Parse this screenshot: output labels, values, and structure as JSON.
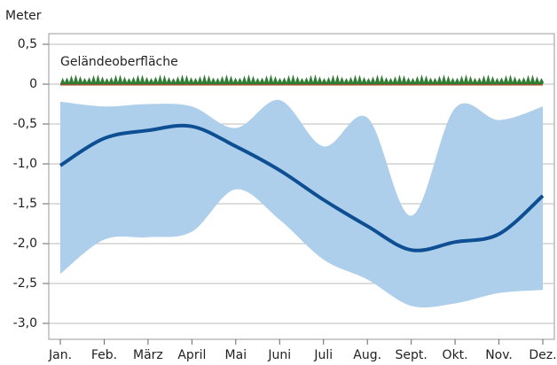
{
  "chart_data": {
    "type": "line",
    "y_label": "Meter",
    "annotation": "Geländeoberfläche",
    "categories": [
      "Jan.",
      "Feb.",
      "März",
      "April",
      "Mai",
      "Juni",
      "Juli",
      "Aug.",
      "Sept.",
      "Okt.",
      "Nov.",
      "Dez."
    ],
    "values": [
      -1.02,
      -0.68,
      -0.58,
      -0.53,
      -0.78,
      -1.08,
      -1.45,
      -1.78,
      -2.08,
      -1.98,
      -1.88,
      -1.4
    ],
    "color": "#0e4f94",
    "band_upper": [
      -0.22,
      -0.28,
      -0.25,
      -0.28,
      -0.55,
      -0.2,
      -0.78,
      -0.42,
      -1.65,
      -0.3,
      -0.45,
      -0.28
    ],
    "band_lower": [
      -2.38,
      -1.95,
      -1.92,
      -1.85,
      -1.32,
      -1.7,
      -2.2,
      -2.45,
      -2.78,
      -2.75,
      -2.62,
      -2.58
    ],
    "band_color": "#aecfeb",
    "ylim": [
      -3.2,
      0.6
    ],
    "yticks": [
      {
        "value": 0.5,
        "label": "0,5"
      },
      0,
      {
        "value": -0.5,
        "label": "-0,5"
      },
      {
        "value": -1.0,
        "label": "-1,0"
      },
      {
        "value": -1.5,
        "label": "-1,5"
      },
      {
        "value": -2.0,
        "label": "-2,0"
      },
      {
        "value": -2.5,
        "label": "-2,5"
      },
      {
        "value": -3.0,
        "label": "-3,0"
      }
    ],
    "grid": true
  }
}
